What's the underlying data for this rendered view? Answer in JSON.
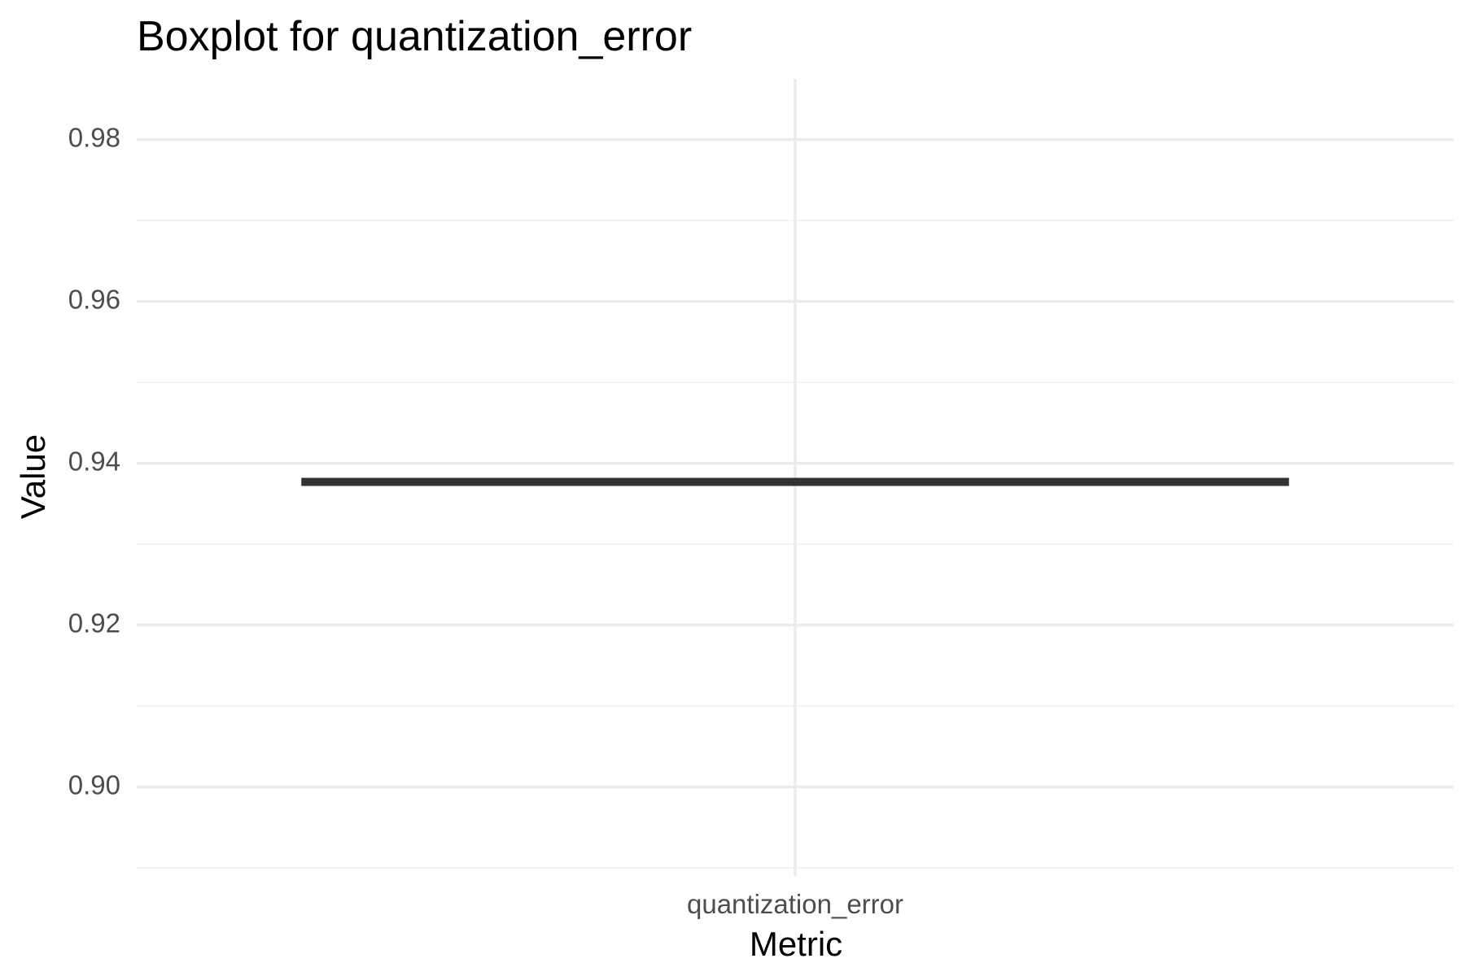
{
  "chart_data": {
    "type": "boxplot",
    "title": "Boxplot for quantization_error",
    "xlabel": "Metric",
    "ylabel": "Value",
    "categories": [
      "quantization_error"
    ],
    "boxes": [
      {
        "category": "quantization_error",
        "min": 0.9377,
        "q1": 0.9377,
        "median": 0.9377,
        "q3": 0.9377,
        "max": 0.9377
      }
    ],
    "ylim": [
      0.889,
      0.9875
    ],
    "y_ticks": [
      0.9,
      0.92,
      0.94,
      0.96,
      0.98
    ],
    "y_tick_labels": [
      "0.90",
      "0.92",
      "0.94",
      "0.96",
      "0.98"
    ],
    "y_minor_ticks": [
      0.89,
      0.91,
      0.93,
      0.95,
      0.97
    ],
    "grid": true,
    "legend": "none",
    "colors": {
      "box_line": "#333333",
      "grid_major": "#ebebeb",
      "grid_minor": "#f2f2f2",
      "tick_text": "#4d4d4d",
      "title_text": "#000000"
    }
  }
}
